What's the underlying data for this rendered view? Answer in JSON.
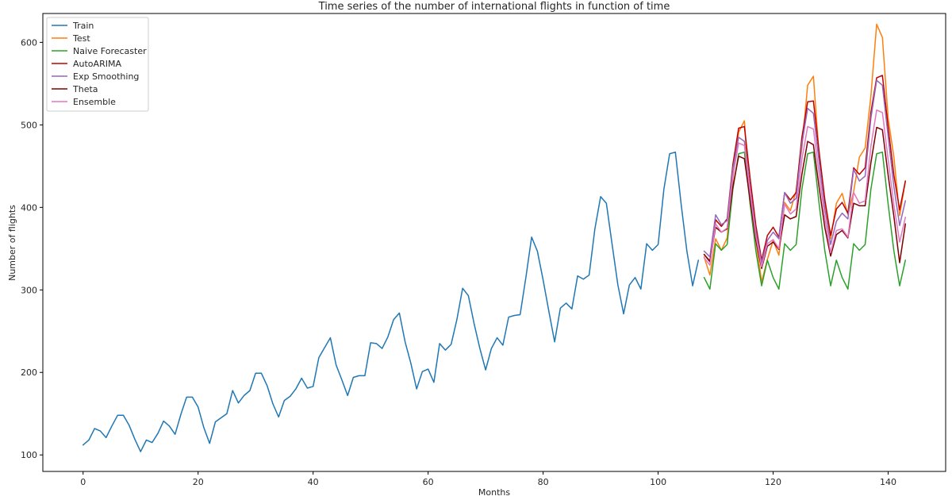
{
  "chart_data": {
    "type": "line",
    "title": "Time series of the number of international flights in function of time",
    "xlabel": "Months",
    "ylabel": "Number of flights",
    "xlim": [
      -7,
      150
    ],
    "ylim": [
      80,
      635
    ],
    "xticks": [
      0,
      20,
      40,
      60,
      80,
      100,
      120,
      140
    ],
    "yticks": [
      100,
      200,
      300,
      400,
      500,
      600
    ],
    "grid": false,
    "legend_position": "top-left",
    "series": [
      {
        "name": "Train",
        "color": "#1f77b4",
        "x_start": 0,
        "values": [
          112,
          118,
          132,
          129,
          121,
          135,
          148,
          148,
          136,
          119,
          104,
          118,
          115,
          126,
          141,
          135,
          125,
          149,
          170,
          170,
          158,
          133,
          114,
          140,
          145,
          150,
          178,
          163,
          172,
          178,
          199,
          199,
          184,
          162,
          146,
          166,
          171,
          180,
          193,
          181,
          183,
          218,
          230,
          242,
          209,
          191,
          172,
          194,
          196,
          196,
          236,
          235,
          229,
          243,
          264,
          272,
          237,
          211,
          180,
          201,
          204,
          188,
          235,
          227,
          234,
          264,
          302,
          293,
          259,
          229,
          203,
          229,
          242,
          233,
          267,
          269,
          270,
          315,
          364,
          347,
          312,
          274,
          237,
          278,
          284,
          277,
          317,
          313,
          318,
          374,
          413,
          405,
          355,
          306,
          271,
          306,
          315,
          301,
          356,
          348,
          355,
          422,
          465,
          467,
          404,
          347,
          305,
          336
        ]
      },
      {
        "name": "Test",
        "color": "#ff7f0e",
        "x_start": 108,
        "values": [
          340,
          318,
          362,
          348,
          363,
          435,
          491,
          505,
          404,
          359,
          310,
          337,
          360,
          342,
          406,
          396,
          420,
          472,
          548,
          559,
          463,
          407,
          362,
          405,
          417,
          391,
          419,
          461,
          472,
          535,
          622,
          606,
          508,
          461,
          390,
          432
        ]
      },
      {
        "name": "Naive Forecaster",
        "color": "#2ca02c",
        "x_start": 108,
        "values": [
          315,
          301,
          356,
          348,
          355,
          422,
          465,
          467,
          404,
          347,
          305,
          336,
          315,
          301,
          356,
          348,
          355,
          422,
          465,
          467,
          404,
          347,
          305,
          336,
          315,
          301,
          356,
          348,
          355,
          422,
          465,
          467,
          404,
          347,
          305,
          336
        ]
      },
      {
        "name": "AutoARIMA",
        "color": "#c00000",
        "x_start": 108,
        "values": [
          343,
          335,
          385,
          377,
          386,
          452,
          496,
          498,
          435,
          378,
          336,
          366,
          376,
          364,
          418,
          409,
          418,
          485,
          528,
          529,
          467,
          409,
          366,
          398,
          406,
          393,
          448,
          440,
          448,
          515,
          557,
          560,
          497,
          439,
          397,
          432
        ]
      },
      {
        "name": "Exp Smoothing",
        "color": "#9467bd",
        "x_start": 108,
        "values": [
          347,
          340,
          391,
          379,
          384,
          447,
          485,
          480,
          423,
          370,
          333,
          360,
          370,
          362,
          418,
          405,
          411,
          477,
          520,
          514,
          455,
          398,
          355,
          383,
          393,
          386,
          446,
          432,
          438,
          508,
          554,
          548,
          486,
          425,
          378,
          408
        ]
      },
      {
        "name": "Theta",
        "color": "#7f0000",
        "x_start": 108,
        "values": [
          343,
          334,
          376,
          370,
          374,
          425,
          462,
          459,
          409,
          360,
          326,
          353,
          358,
          349,
          391,
          386,
          389,
          440,
          480,
          476,
          424,
          375,
          341,
          367,
          372,
          363,
          405,
          402,
          402,
          454,
          497,
          494,
          439,
          389,
          333,
          380
        ]
      },
      {
        "name": "Ensemble",
        "color": "#e377c2",
        "x_start": 108,
        "values": [
          339,
          330,
          380,
          370,
          375,
          438,
          478,
          475,
          418,
          365,
          328,
          356,
          361,
          350,
          404,
          392,
          398,
          458,
          498,
          495,
          440,
          386,
          345,
          372,
          374,
          364,
          418,
          405,
          408,
          474,
          518,
          515,
          458,
          403,
          358,
          388
        ]
      }
    ]
  }
}
